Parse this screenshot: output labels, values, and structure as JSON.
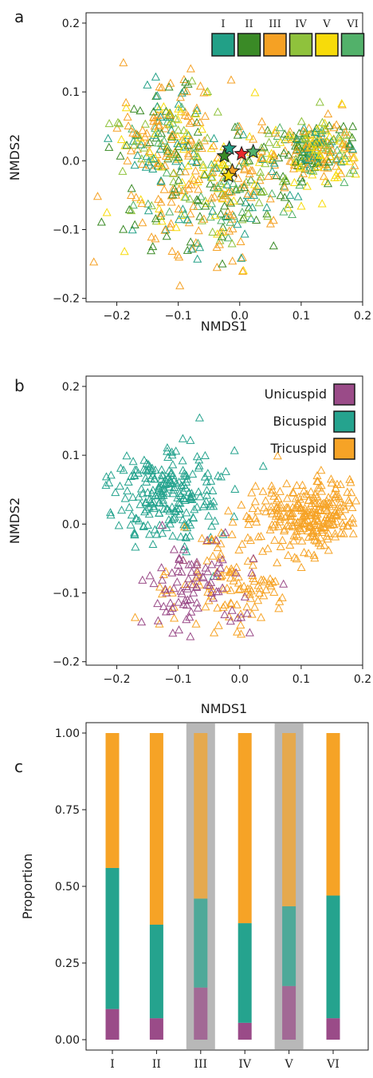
{
  "colors": {
    "I": "#22a087",
    "II": "#3a8a26",
    "III": "#f5a124",
    "IV": "#8fc23c",
    "V": "#f7db0a",
    "VI": "#52b16a",
    "unicuspid": "#9a4b88",
    "bicuspid": "#25a38e",
    "tricuspid": "#f6a326",
    "centroid_red": "#e8282c",
    "highlight": "#b8b8b8"
  },
  "chart_data": [
    {
      "panel_label": "a",
      "type": "scatter",
      "xlabel": "NMDS1",
      "ylabel": "NMDS2",
      "xlim": [
        -0.25,
        0.2
      ],
      "ylim": [
        -0.205,
        0.215
      ],
      "xticks": [
        -0.2,
        -0.1,
        0.0,
        0.1,
        0.2
      ],
      "xtick_labels": [
        "−0.2",
        "−0.1",
        "0.0",
        "0.1",
        "0.2"
      ],
      "yticks": [
        -0.2,
        -0.1,
        0.0,
        0.1,
        0.2
      ],
      "ytick_labels": [
        "−0.2",
        "−0.1",
        "0.0",
        "0.1",
        "0.2"
      ],
      "marker": "open triangle",
      "legend": {
        "placement": "top-right",
        "entries": [
          "I",
          "II",
          "III",
          "IV",
          "V",
          "VI"
        ]
      },
      "point_clouds": [
        {
          "center": [
            -0.12,
            0.04
          ],
          "spread": [
            0.045,
            0.04
          ],
          "count": 210
        },
        {
          "center": [
            0.12,
            0.015
          ],
          "spread": [
            0.04,
            0.022
          ],
          "count": 260
        },
        {
          "center": [
            -0.06,
            -0.07
          ],
          "spread": [
            0.06,
            0.05
          ],
          "count": 190
        },
        {
          "center": [
            0.02,
            -0.03
          ],
          "spread": [
            0.05,
            0.035
          ],
          "count": 90
        }
      ],
      "centroids": [
        {
          "group": "I",
          "x": -0.017,
          "y": 0.018
        },
        {
          "group": "II",
          "x": -0.025,
          "y": 0.007
        },
        {
          "group": "III",
          "x": -0.012,
          "y": -0.015
        },
        {
          "group": "IV",
          "x": 0.003,
          "y": 0.01
        },
        {
          "group": "V",
          "x": -0.018,
          "y": -0.022
        },
        {
          "group": "VI",
          "x": 0.022,
          "y": 0.013
        }
      ]
    },
    {
      "panel_label": "b",
      "type": "scatter",
      "xlabel": "NMDS1",
      "ylabel": "NMDS2",
      "xlim": [
        -0.25,
        0.2
      ],
      "ylim": [
        -0.205,
        0.215
      ],
      "xticks": [
        -0.2,
        -0.1,
        0.0,
        0.1,
        0.2
      ],
      "xtick_labels": [
        "−0.2",
        "−0.1",
        "0.0",
        "0.1",
        "0.2"
      ],
      "yticks": [
        -0.2,
        -0.1,
        0.0,
        0.1,
        0.2
      ],
      "ytick_labels": [
        "−0.2",
        "−0.1",
        "0.0",
        "0.1",
        "0.2"
      ],
      "marker": "open triangle",
      "legend": {
        "placement": "top-right",
        "entries": [
          "Unicuspid",
          "Bicuspid",
          "Tricuspid"
        ]
      },
      "point_clouds": [
        {
          "series": "Bicuspid",
          "center": [
            -0.12,
            0.04
          ],
          "spread": [
            0.045,
            0.035
          ],
          "count": 230
        },
        {
          "series": "Tricuspid",
          "center": [
            0.115,
            0.015
          ],
          "spread": [
            0.042,
            0.025
          ],
          "count": 280
        },
        {
          "series": "Tricuspid",
          "center": [
            -0.02,
            -0.09
          ],
          "spread": [
            0.05,
            0.04
          ],
          "count": 120
        },
        {
          "series": "Unicuspid",
          "center": [
            -0.07,
            -0.09
          ],
          "spread": [
            0.045,
            0.035
          ],
          "count": 90
        }
      ]
    },
    {
      "panel_label": "c",
      "type": "bar",
      "stacked": true,
      "ylabel": "Proportion",
      "ylim": [
        0,
        1
      ],
      "yticks": [
        0.0,
        0.25,
        0.5,
        0.75,
        1.0
      ],
      "ytick_labels": [
        "0.00",
        "0.25",
        "0.50",
        "0.75",
        "1.00"
      ],
      "categories": [
        "I",
        "II",
        "III",
        "IV",
        "V",
        "VI"
      ],
      "highlighted_categories": [
        "III",
        "V"
      ],
      "series": [
        {
          "name": "Unicuspid",
          "values": [
            0.1,
            0.07,
            0.17,
            0.055,
            0.175,
            0.07
          ]
        },
        {
          "name": "Bicuspid",
          "values": [
            0.46,
            0.305,
            0.29,
            0.325,
            0.26,
            0.4
          ]
        },
        {
          "name": "Tricuspid",
          "values": [
            0.44,
            0.625,
            0.54,
            0.62,
            0.565,
            0.53
          ]
        }
      ]
    }
  ]
}
